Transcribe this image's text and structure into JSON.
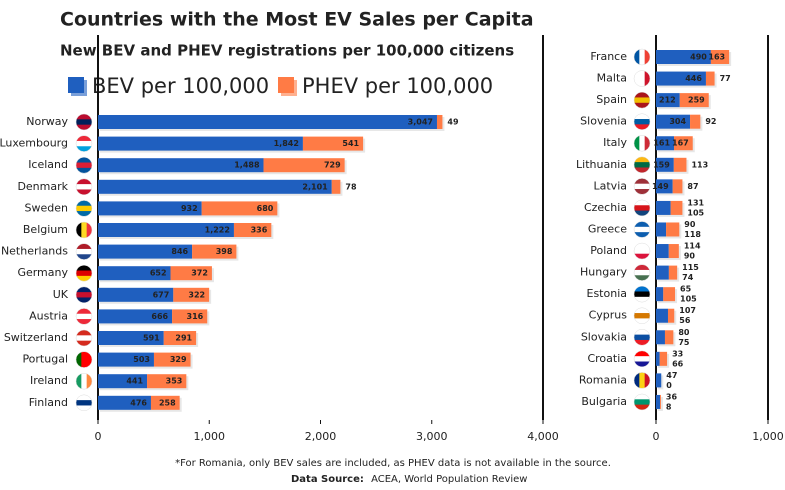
{
  "chart_data": [
    {
      "type": "stacked-barh",
      "title": "Countries with the Most EV Sales per Capita",
      "subtitle": "New BEV and PHEV registrations per 100,000 citizens",
      "footnote": "*For Romania, only BEV sales are included, as PHEV data is not available in the source.",
      "source_label": "Data Source:",
      "source": "ACEA, World Population Review",
      "categories": [
        "Norway",
        "Luxembourg",
        "Iceland",
        "Denmark",
        "Sweden",
        "Belgium",
        "Netherlands",
        "Germany",
        "UK",
        "Austria",
        "Switzerland",
        "Portugal",
        "Ireland",
        "Finland"
      ],
      "series": [
        {
          "name": "BEV per 100,000",
          "color": "#1f5fbf",
          "values": [
            3047,
            1842,
            1488,
            2101,
            932,
            1222,
            846,
            652,
            677,
            666,
            591,
            503,
            441,
            476
          ],
          "value_labels": [
            "3,047",
            "1,842",
            "1,488",
            "2,101",
            "932",
            "1,222",
            "846",
            "652",
            "677",
            "666",
            "591",
            "503",
            "441",
            "476"
          ]
        },
        {
          "name": "PHEV per 100,000",
          "color": "#ff7b45",
          "values": [
            49,
            541,
            729,
            78,
            680,
            336,
            398,
            372,
            322,
            316,
            291,
            329,
            353,
            258
          ]
        }
      ],
      "xlim": [
        0,
        4000
      ],
      "xticks": [
        0,
        {
          "value": 1000,
          "label": "1,000"
        },
        {
          "value": 2000,
          "label": "2,000"
        },
        {
          "value": 3000,
          "label": "3,000"
        },
        {
          "value": 4000,
          "label": "4,000"
        }
      ]
    },
    {
      "type": "stacked-barh",
      "categories": [
        "France",
        "Malta",
        "Spain",
        "Slovenia",
        "Italy",
        "Lithuania",
        "Latvia",
        "Czechia",
        "Greece",
        "Poland",
        "Hungary",
        "Estonia",
        "Cyprus",
        "Slovakia",
        "Croatia",
        "Romania",
        "Bulgaria"
      ],
      "series": [
        {
          "name": "BEV per 100,000",
          "color": "#1f5fbf",
          "values": [
            490,
            446,
            212,
            304,
            161,
            159,
            149,
            131,
            90,
            114,
            115,
            65,
            107,
            80,
            33,
            47,
            36
          ]
        },
        {
          "name": "PHEV per 100,000",
          "color": "#ff7b45",
          "values": [
            163,
            77,
            259,
            92,
            167,
            113,
            87,
            105,
            118,
            90,
            74,
            105,
            56,
            75,
            66,
            0,
            8
          ]
        }
      ],
      "xlim": [
        0,
        1000
      ],
      "xticks": [
        0,
        {
          "value": 1000,
          "label": "1,000"
        }
      ]
    }
  ]
}
